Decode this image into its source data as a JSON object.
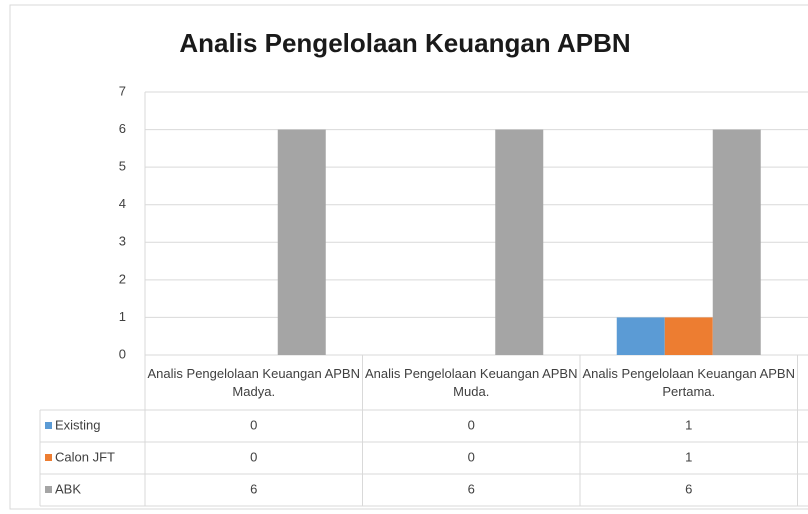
{
  "chart_data": {
    "type": "bar",
    "title": "Analis Pengelolaan Keuangan APBN",
    "categories": [
      "Analis Pengelolaan Keuangan APBN Madya.",
      "Analis Pengelolaan Keuangan APBN Muda.",
      "Analis Pengelolaan Keuangan APBN Pertama."
    ],
    "series": [
      {
        "name": "Existing",
        "color": "#5b9bd5",
        "values": [
          0,
          0,
          1
        ]
      },
      {
        "name": "Calon JFT",
        "color": "#ed7d31",
        "values": [
          0,
          0,
          1
        ]
      },
      {
        "name": "ABK",
        "color": "#a5a5a5",
        "values": [
          6,
          6,
          6
        ]
      }
    ],
    "ylim": [
      0,
      7
    ],
    "yticks": [
      0,
      1,
      2,
      3,
      4,
      5,
      6,
      7
    ],
    "grid": true,
    "data_table": true
  }
}
